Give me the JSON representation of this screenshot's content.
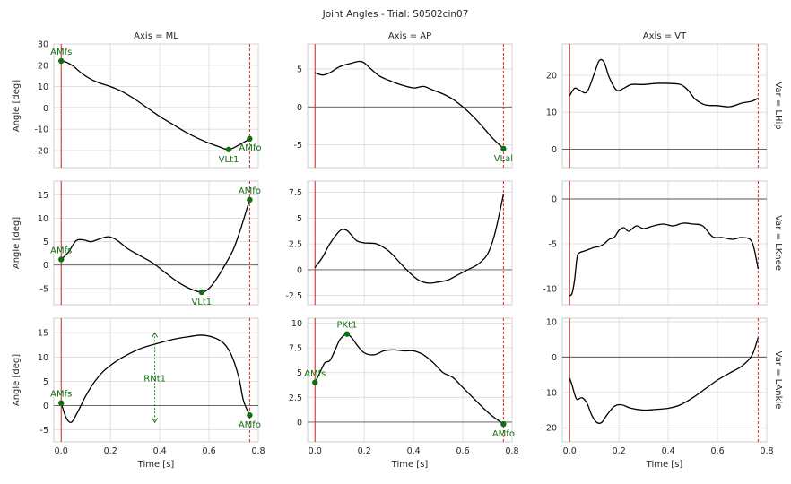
{
  "figure": {
    "title": "Joint Angles - Trial: S0502cin07",
    "col_titles": [
      "Axis = ML",
      "Axis = AP",
      "Axis = VT"
    ],
    "row_titles": [
      "Var = LHip",
      "Var = LKnee",
      "Var = LAnkle"
    ],
    "xlabel": "Time [s]",
    "ylabel": "Angle [deg]",
    "xticks": [
      "0.0",
      "0.2",
      "0.4",
      "0.6",
      "0.8"
    ]
  },
  "colors": {
    "curve": "#000000",
    "event_start": "#d62728",
    "event_end": "#d62728",
    "marker": "#107010",
    "grid": "#d9d9d9",
    "zero_line": "#555555"
  },
  "chart_data": [
    {
      "type": "line",
      "row": "Var = LHip",
      "col": "Axis = ML",
      "xlim": [
        -0.03,
        0.8
      ],
      "ylim": [
        -28,
        30
      ],
      "yticks": [
        -20,
        -10,
        0,
        10,
        20,
        30
      ],
      "event_start": 0.0,
      "event_end": 0.765,
      "x": [
        0.0,
        0.02,
        0.05,
        0.08,
        0.12,
        0.16,
        0.2,
        0.25,
        0.3,
        0.35,
        0.4,
        0.45,
        0.5,
        0.55,
        0.6,
        0.64,
        0.68,
        0.72,
        0.765
      ],
      "y": [
        22,
        21.5,
        19.5,
        16.5,
        13.5,
        11.5,
        10,
        7.5,
        4,
        0,
        -4,
        -7.5,
        -11,
        -14,
        -16.5,
        -18.2,
        -19.5,
        -17.5,
        -14.5
      ],
      "markers": [
        {
          "x": 0.0,
          "y": 22,
          "label": "AMfs",
          "pos": "above"
        },
        {
          "x": 0.68,
          "y": -19.5,
          "label": "VLt1",
          "pos": "below"
        },
        {
          "x": 0.765,
          "y": -14.5,
          "label": "AMfo",
          "pos": "belowright"
        }
      ]
    },
    {
      "type": "line",
      "row": "Var = LHip",
      "col": "Axis = AP",
      "xlim": [
        -0.03,
        0.8
      ],
      "ylim": [
        -8,
        8.3
      ],
      "yticks": [
        -5,
        0,
        5
      ],
      "event_start": 0.0,
      "event_end": 0.765,
      "x": [
        0.0,
        0.03,
        0.06,
        0.1,
        0.14,
        0.18,
        0.2,
        0.22,
        0.26,
        0.3,
        0.35,
        0.4,
        0.44,
        0.48,
        0.52,
        0.56,
        0.6,
        0.64,
        0.68,
        0.72,
        0.765
      ],
      "y": [
        4.5,
        4.2,
        4.5,
        5.3,
        5.7,
        6.0,
        5.8,
        5.2,
        4.1,
        3.5,
        2.9,
        2.5,
        2.7,
        2.2,
        1.7,
        1.0,
        0.0,
        -1.2,
        -2.6,
        -4.1,
        -5.5
      ],
      "markers": [
        {
          "x": 0.765,
          "y": -5.5,
          "label": "VLal",
          "pos": "below"
        }
      ]
    },
    {
      "type": "line",
      "row": "Var = LHip",
      "col": "Axis = VT",
      "xlim": [
        -0.03,
        0.8
      ],
      "ylim": [
        -5,
        28.5
      ],
      "yticks": [
        0,
        10,
        20
      ],
      "event_start": 0.0,
      "event_end": 0.765,
      "x": [
        0.0,
        0.02,
        0.04,
        0.07,
        0.1,
        0.12,
        0.14,
        0.16,
        0.19,
        0.22,
        0.25,
        0.3,
        0.35,
        0.4,
        0.45,
        0.48,
        0.51,
        0.55,
        0.6,
        0.65,
        0.7,
        0.74,
        0.765
      ],
      "y": [
        14.5,
        16.5,
        16.0,
        15.5,
        20.5,
        24.0,
        23.5,
        19.5,
        16.0,
        16.5,
        17.5,
        17.5,
        17.8,
        17.8,
        17.5,
        16.0,
        13.5,
        12.0,
        11.8,
        11.5,
        12.5,
        13.0,
        13.8
      ],
      "markers": []
    },
    {
      "type": "line",
      "row": "Var = LKnee",
      "col": "Axis = ML",
      "xlim": [
        -0.03,
        0.8
      ],
      "ylim": [
        -8.5,
        18
      ],
      "yticks": [
        -5,
        0,
        5,
        10,
        15
      ],
      "event_start": 0.0,
      "event_end": 0.765,
      "x": [
        0.0,
        0.03,
        0.06,
        0.09,
        0.12,
        0.15,
        0.18,
        0.2,
        0.23,
        0.27,
        0.32,
        0.37,
        0.42,
        0.47,
        0.52,
        0.57,
        0.6,
        0.63,
        0.67,
        0.7,
        0.73,
        0.765
      ],
      "y": [
        1.2,
        2.8,
        5.2,
        5.4,
        5.0,
        5.5,
        6.0,
        6.0,
        5.2,
        3.5,
        2.0,
        0.5,
        -1.5,
        -3.5,
        -5.0,
        -5.8,
        -5.0,
        -3.0,
        0.5,
        3.5,
        8.0,
        14.0
      ],
      "markers": [
        {
          "x": 0.0,
          "y": 1.2,
          "label": "AMfs",
          "pos": "above"
        },
        {
          "x": 0.57,
          "y": -5.8,
          "label": "VLt1",
          "pos": "below"
        },
        {
          "x": 0.765,
          "y": 14.0,
          "label": "AMfo",
          "pos": "above"
        }
      ]
    },
    {
      "type": "line",
      "row": "Var = LKnee",
      "col": "Axis = AP",
      "xlim": [
        -0.03,
        0.8
      ],
      "ylim": [
        -3.4,
        8.6
      ],
      "yticks": [
        -2.5,
        0.0,
        2.5,
        5.0,
        7.5
      ],
      "event_start": 0.0,
      "event_end": 0.765,
      "x": [
        0.0,
        0.03,
        0.06,
        0.09,
        0.11,
        0.13,
        0.15,
        0.17,
        0.2,
        0.25,
        0.3,
        0.34,
        0.38,
        0.42,
        0.46,
        0.5,
        0.54,
        0.58,
        0.62,
        0.66,
        0.7,
        0.73,
        0.765
      ],
      "y": [
        0.2,
        1.2,
        2.5,
        3.5,
        3.9,
        3.8,
        3.3,
        2.8,
        2.6,
        2.5,
        1.8,
        0.8,
        -0.2,
        -1.0,
        -1.3,
        -1.2,
        -1.0,
        -0.5,
        0.0,
        0.5,
        1.5,
        3.5,
        7.3
      ],
      "markers": []
    },
    {
      "type": "line",
      "row": "Var = LKnee",
      "col": "Axis = VT",
      "xlim": [
        -0.03,
        0.8
      ],
      "ylim": [
        -11.8,
        2
      ],
      "yticks": [
        -10,
        -5,
        0
      ],
      "event_start": 0.0,
      "event_end": 0.765,
      "x": [
        0.0,
        0.01,
        0.02,
        0.03,
        0.04,
        0.06,
        0.08,
        0.1,
        0.12,
        0.14,
        0.16,
        0.18,
        0.2,
        0.22,
        0.24,
        0.27,
        0.3,
        0.34,
        0.38,
        0.42,
        0.46,
        0.5,
        0.54,
        0.58,
        0.62,
        0.66,
        0.7,
        0.74,
        0.765
      ],
      "y": [
        -10.8,
        -10.5,
        -9.0,
        -6.5,
        -6.0,
        -5.8,
        -5.6,
        -5.4,
        -5.3,
        -5.0,
        -4.5,
        -4.3,
        -3.5,
        -3.2,
        -3.6,
        -3.0,
        -3.3,
        -3.0,
        -2.8,
        -3.0,
        -2.7,
        -2.8,
        -3.0,
        -4.2,
        -4.3,
        -4.5,
        -4.3,
        -4.8,
        -7.8
      ],
      "markers": []
    },
    {
      "type": "line",
      "row": "Var = LAnkle",
      "col": "Axis = ML",
      "xlim": [
        -0.03,
        0.8
      ],
      "ylim": [
        -7.5,
        18
      ],
      "yticks": [
        -5,
        0,
        5,
        10,
        15
      ],
      "event_start": 0.0,
      "event_end": 0.765,
      "x": [
        0.0,
        0.02,
        0.04,
        0.06,
        0.08,
        0.1,
        0.13,
        0.17,
        0.22,
        0.27,
        0.32,
        0.37,
        0.42,
        0.47,
        0.52,
        0.57,
        0.62,
        0.66,
        0.69,
        0.72,
        0.74,
        0.765
      ],
      "y": [
        0.5,
        -2.5,
        -3.5,
        -2.0,
        0.0,
        2.0,
        4.5,
        7.0,
        9.0,
        10.5,
        11.7,
        12.5,
        13.2,
        13.8,
        14.2,
        14.5,
        14.0,
        12.8,
        10.5,
        6.0,
        1.0,
        -2.0
      ],
      "markers": [
        {
          "x": 0.0,
          "y": 0.5,
          "label": "AMfs",
          "pos": "above"
        },
        {
          "x": 0.765,
          "y": -2.0,
          "label": "AMfo",
          "pos": "below"
        }
      ],
      "range_annotation": {
        "x": 0.38,
        "y_from": 15.0,
        "y_to": -3.5,
        "label": "RNt1"
      }
    },
    {
      "type": "line",
      "row": "Var = LAnkle",
      "col": "Axis = AP",
      "xlim": [
        -0.03,
        0.8
      ],
      "ylim": [
        -2,
        10.5
      ],
      "yticks": [
        0.0,
        2.5,
        5.0,
        7.5,
        10.0
      ],
      "event_start": 0.0,
      "event_end": 0.765,
      "x": [
        0.0,
        0.02,
        0.04,
        0.06,
        0.08,
        0.1,
        0.12,
        0.13,
        0.15,
        0.17,
        0.2,
        0.24,
        0.28,
        0.32,
        0.36,
        0.4,
        0.44,
        0.48,
        0.52,
        0.56,
        0.6,
        0.64,
        0.68,
        0.72,
        0.765
      ],
      "y": [
        4.0,
        5.0,
        6.0,
        6.2,
        7.2,
        8.3,
        8.8,
        8.9,
        8.5,
        7.8,
        7.0,
        6.8,
        7.2,
        7.3,
        7.2,
        7.2,
        6.8,
        6.0,
        5.0,
        4.5,
        3.5,
        2.5,
        1.5,
        0.6,
        -0.2
      ],
      "markers": [
        {
          "x": 0.0,
          "y": 4.0,
          "label": "AMfs",
          "pos": "above"
        },
        {
          "x": 0.13,
          "y": 8.9,
          "label": "PKt1",
          "pos": "above"
        },
        {
          "x": 0.765,
          "y": -0.2,
          "label": "AMfo",
          "pos": "below"
        }
      ]
    },
    {
      "type": "line",
      "row": "Var = LAnkle",
      "col": "Axis = VT",
      "xlim": [
        -0.03,
        0.8
      ],
      "ylim": [
        -24,
        11
      ],
      "yticks": [
        -20,
        -10,
        0,
        10
      ],
      "event_start": 0.0,
      "event_end": 0.765,
      "x": [
        0.0,
        0.01,
        0.02,
        0.03,
        0.05,
        0.07,
        0.09,
        0.11,
        0.13,
        0.15,
        0.18,
        0.21,
        0.25,
        0.3,
        0.35,
        0.4,
        0.45,
        0.5,
        0.55,
        0.6,
        0.65,
        0.7,
        0.74,
        0.765
      ],
      "y": [
        -6.0,
        -8.0,
        -10.5,
        -12.0,
        -11.5,
        -13.0,
        -16.5,
        -18.5,
        -18.5,
        -16.5,
        -14.0,
        -13.5,
        -14.5,
        -15.0,
        -14.8,
        -14.5,
        -13.5,
        -11.5,
        -9.0,
        -6.5,
        -4.5,
        -2.5,
        0.5,
        5.5
      ],
      "markers": []
    }
  ]
}
